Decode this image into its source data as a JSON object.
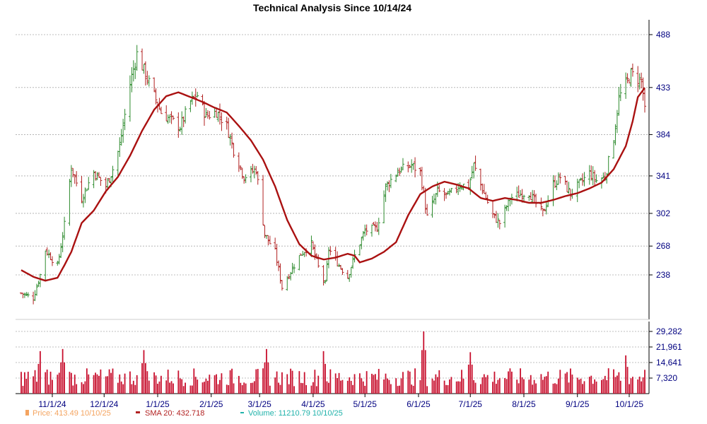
{
  "chart_data": {
    "type": "ohlc",
    "title": "Technical Analysis Since 10/14/24",
    "price_axis": {
      "ticks": [
        238,
        268,
        302,
        341,
        384,
        433,
        488
      ],
      "ylim": [
        210,
        490
      ]
    },
    "volume_axis": {
      "ticks": [
        "7,320",
        "14,641",
        "21,961",
        "29,282"
      ],
      "values": [
        7320,
        14641,
        21961,
        29282
      ],
      "ylim": [
        0,
        30500
      ]
    },
    "x_ticks": [
      "11/1/24",
      "12/1/24",
      "1/1/25",
      "2/1/25",
      "3/1/25",
      "4/1/25",
      "5/1/25",
      "6/1/25",
      "7/1/25",
      "8/1/25",
      "9/1/25",
      "10/1/25"
    ],
    "x_tick_dates": [
      "2024-11-01",
      "2024-12-01",
      "2025-01-01",
      "2025-02-01",
      "2025-03-01",
      "2025-04-01",
      "2025-05-01",
      "2025-06-01",
      "2025-07-01",
      "2025-08-01",
      "2025-09-01",
      "2025-10-01"
    ],
    "date_range": [
      "2024-10-14",
      "2025-10-10"
    ],
    "price_anchors": [
      [
        "2024-10-14",
        219
      ],
      [
        "2024-10-21",
        214
      ],
      [
        "2024-10-25",
        238
      ],
      [
        "2024-10-28",
        264
      ],
      [
        "2024-11-04",
        247
      ],
      [
        "2024-11-08",
        290
      ],
      [
        "2024-11-12",
        350
      ],
      [
        "2024-11-18",
        318
      ],
      [
        "2024-11-25",
        345
      ],
      [
        "2024-12-02",
        330
      ],
      [
        "2024-12-06",
        348
      ],
      [
        "2024-12-10",
        372
      ],
      [
        "2024-12-16",
        437
      ],
      [
        "2024-12-20",
        468
      ],
      [
        "2024-12-27",
        438
      ],
      [
        "2025-01-03",
        407
      ],
      [
        "2025-01-08",
        400
      ],
      [
        "2025-01-14",
        392
      ],
      [
        "2025-01-20",
        418
      ],
      [
        "2025-01-24",
        425
      ],
      [
        "2025-01-29",
        403
      ],
      [
        "2025-02-04",
        408
      ],
      [
        "2025-02-10",
        393
      ],
      [
        "2025-02-14",
        368
      ],
      [
        "2025-02-20",
        340
      ],
      [
        "2025-02-27",
        348
      ],
      [
        "2025-03-04",
        280
      ],
      [
        "2025-03-10",
        262
      ],
      [
        "2025-03-14",
        225
      ],
      [
        "2025-03-20",
        245
      ],
      [
        "2025-03-25",
        260
      ],
      [
        "2025-03-31",
        270
      ],
      [
        "2025-04-04",
        246
      ],
      [
        "2025-04-08",
        228
      ],
      [
        "2025-04-10",
        265
      ],
      [
        "2025-04-16",
        248
      ],
      [
        "2025-04-21",
        236
      ],
      [
        "2025-04-25",
        258
      ],
      [
        "2025-05-01",
        284
      ],
      [
        "2025-05-08",
        287
      ],
      [
        "2025-05-13",
        330
      ],
      [
        "2025-05-20",
        346
      ],
      [
        "2025-05-28",
        352
      ],
      [
        "2025-06-02",
        345
      ],
      [
        "2025-06-06",
        298
      ],
      [
        "2025-06-12",
        325
      ],
      [
        "2025-06-18",
        320
      ],
      [
        "2025-06-25",
        332
      ],
      [
        "2025-06-30",
        330
      ],
      [
        "2025-07-03",
        352
      ],
      [
        "2025-07-08",
        327
      ],
      [
        "2025-07-14",
        300
      ],
      [
        "2025-07-18",
        292
      ],
      [
        "2025-07-24",
        318
      ],
      [
        "2025-07-30",
        322
      ],
      [
        "2025-08-04",
        324
      ],
      [
        "2025-08-08",
        312
      ],
      [
        "2025-08-12",
        302
      ],
      [
        "2025-08-18",
        332
      ],
      [
        "2025-08-22",
        340
      ],
      [
        "2025-08-28",
        322
      ],
      [
        "2025-09-02",
        332
      ],
      [
        "2025-09-08",
        344
      ],
      [
        "2025-09-12",
        336
      ],
      [
        "2025-09-17",
        340
      ],
      [
        "2025-09-22",
        380
      ],
      [
        "2025-09-25",
        422
      ],
      [
        "2025-09-29",
        436
      ],
      [
        "2025-10-02",
        447
      ],
      [
        "2025-10-06",
        442
      ],
      [
        "2025-10-08",
        440
      ],
      [
        "2025-10-10",
        413.49
      ]
    ],
    "sma_anchors": [
      [
        "2024-10-14",
        243
      ],
      [
        "2024-10-21",
        236
      ],
      [
        "2024-10-28",
        232
      ],
      [
        "2024-11-04",
        235
      ],
      [
        "2024-11-08",
        248
      ],
      [
        "2024-11-12",
        262
      ],
      [
        "2024-11-18",
        292
      ],
      [
        "2024-11-25",
        305
      ],
      [
        "2024-12-02",
        325
      ],
      [
        "2024-12-09",
        340
      ],
      [
        "2024-12-16",
        362
      ],
      [
        "2024-12-23",
        388
      ],
      [
        "2024-12-30",
        410
      ],
      [
        "2025-01-06",
        424
      ],
      [
        "2025-01-13",
        428
      ],
      [
        "2025-01-20",
        423
      ],
      [
        "2025-01-27",
        418
      ],
      [
        "2025-02-03",
        412
      ],
      [
        "2025-02-10",
        407
      ],
      [
        "2025-02-17",
        393
      ],
      [
        "2025-02-24",
        378
      ],
      [
        "2025-03-03",
        358
      ],
      [
        "2025-03-10",
        330
      ],
      [
        "2025-03-17",
        295
      ],
      [
        "2025-03-24",
        270
      ],
      [
        "2025-03-31",
        258
      ],
      [
        "2025-04-07",
        254
      ],
      [
        "2025-04-14",
        256
      ],
      [
        "2025-04-21",
        260
      ],
      [
        "2025-04-25",
        258
      ],
      [
        "2025-04-28",
        251
      ],
      [
        "2025-05-05",
        255
      ],
      [
        "2025-05-12",
        262
      ],
      [
        "2025-05-19",
        272
      ],
      [
        "2025-05-26",
        300
      ],
      [
        "2025-06-02",
        322
      ],
      [
        "2025-06-09",
        330
      ],
      [
        "2025-06-16",
        335
      ],
      [
        "2025-06-23",
        332
      ],
      [
        "2025-06-30",
        328
      ],
      [
        "2025-07-07",
        318
      ],
      [
        "2025-07-14",
        315
      ],
      [
        "2025-07-21",
        318
      ],
      [
        "2025-07-28",
        316
      ],
      [
        "2025-08-04",
        313
      ],
      [
        "2025-08-11",
        313
      ],
      [
        "2025-08-18",
        316
      ],
      [
        "2025-08-25",
        320
      ],
      [
        "2025-09-01",
        323
      ],
      [
        "2025-09-08",
        328
      ],
      [
        "2025-09-15",
        334
      ],
      [
        "2025-09-22",
        348
      ],
      [
        "2025-09-29",
        372
      ],
      [
        "2025-10-03",
        398
      ],
      [
        "2025-10-06",
        423
      ],
      [
        "2025-10-10",
        432.718
      ]
    ],
    "volume_spikes": [
      [
        "2024-10-25",
        20000
      ],
      [
        "2024-11-07",
        21000
      ],
      [
        "2024-12-24",
        20500
      ],
      [
        "2025-03-05",
        21000
      ],
      [
        "2025-04-07",
        20000
      ],
      [
        "2025-06-04",
        29282
      ],
      [
        "2025-07-01",
        19500
      ],
      [
        "2025-09-29",
        18000
      ]
    ],
    "legend": [
      {
        "name": "Price",
        "label": "Price: 413.49  10/10/25",
        "value": 413.49,
        "date": "10/10/25"
      },
      {
        "name": "SMA 20",
        "label": "SMA 20: 432.718",
        "value": 432.718
      },
      {
        "name": "Volume",
        "label": "Volume: 11210.79  10/10/25",
        "value": 11210.79,
        "date": "10/10/25"
      }
    ],
    "colors": {
      "up": "#2e8b2e",
      "down": "#b22222",
      "sma": "#aa1111",
      "volume": "#c8102e",
      "grid": "#aaaaaa",
      "axis": "#000080",
      "price_legend": "#f4a460",
      "volume_legend": "#20b2aa"
    }
  }
}
